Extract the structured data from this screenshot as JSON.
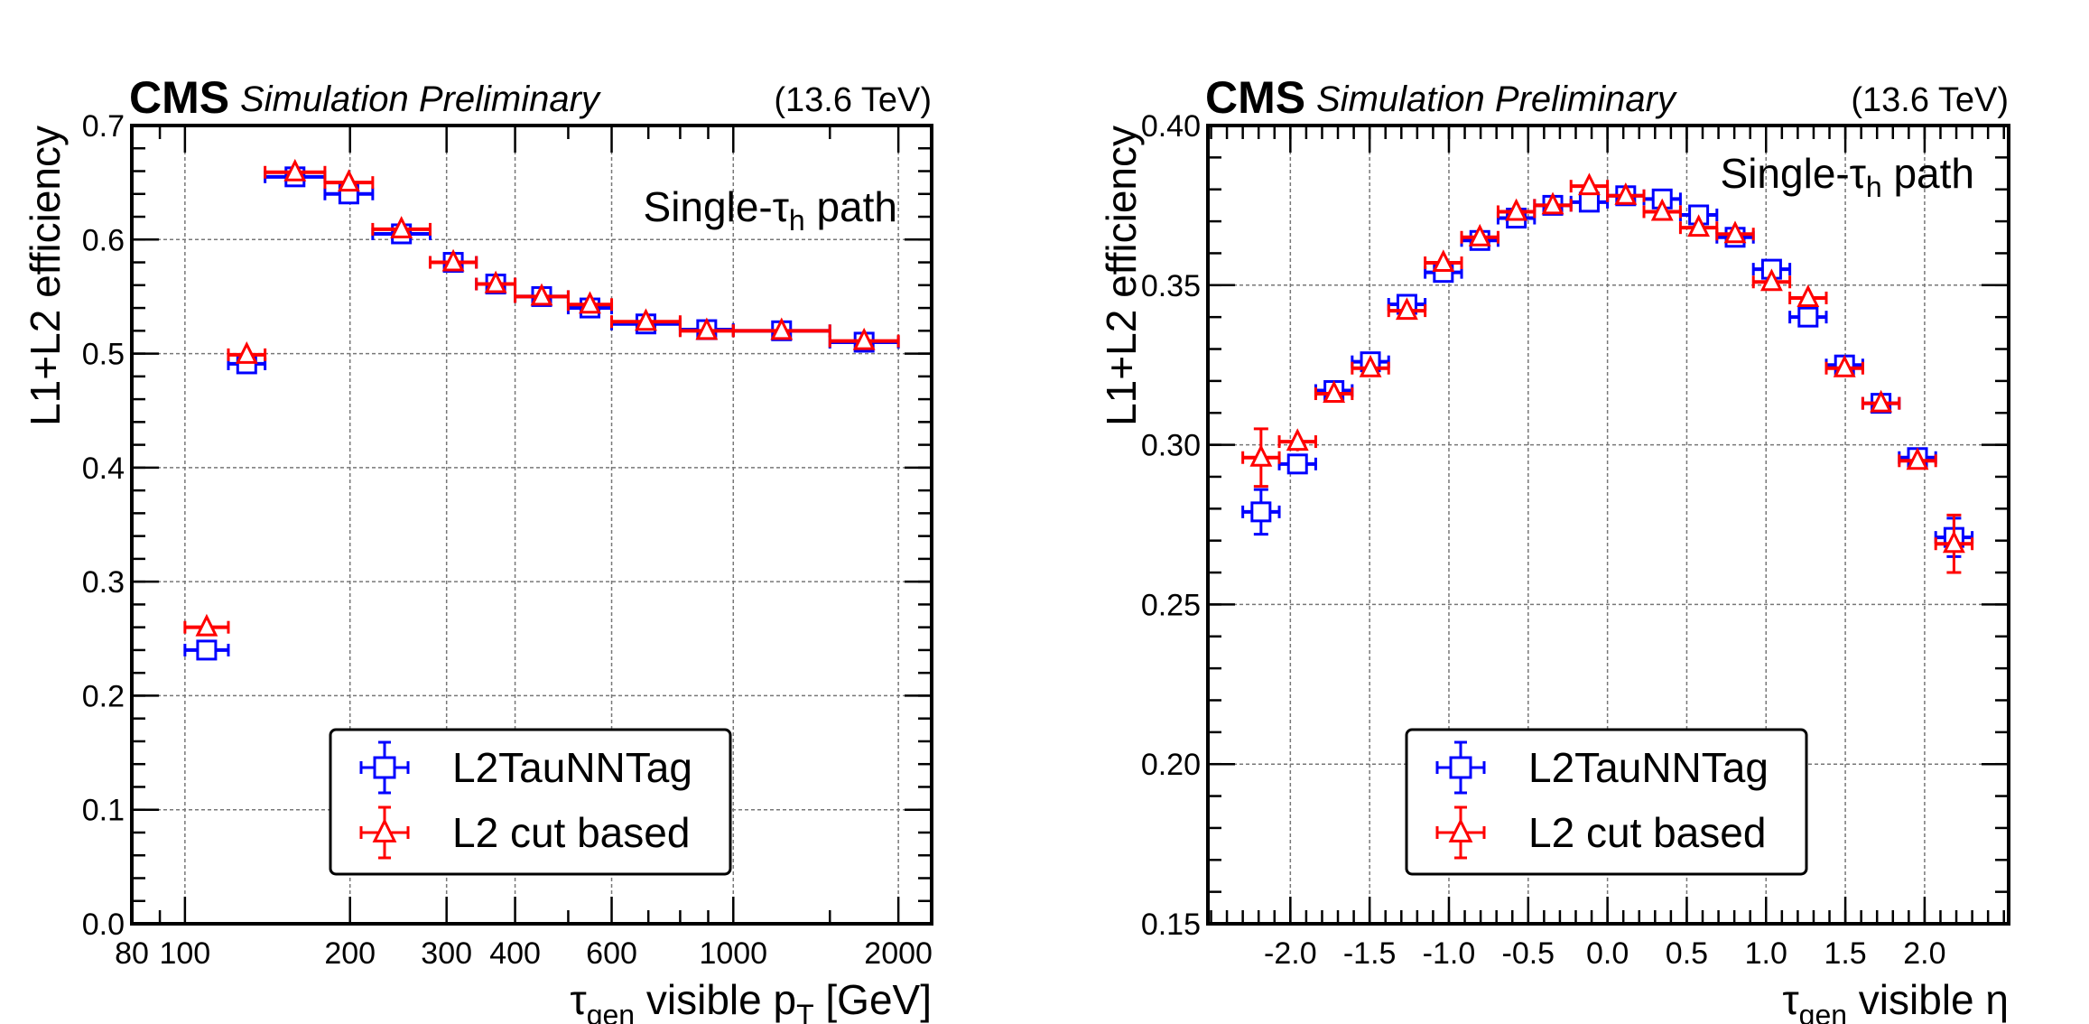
{
  "chart_data": [
    {
      "type": "scatter",
      "name": "efficiency-vs-pt",
      "header": {
        "experiment": "CMS",
        "status": "Simulation Preliminary",
        "energy": "(13.6 TeV)"
      },
      "annotation": {
        "main": "Single-τ",
        "sub": "h",
        "rest": " path"
      },
      "xlabel": {
        "main": "τ",
        "sub": "gen",
        "rest": " visible p",
        "sub2": "T",
        "rest2": " [GeV]"
      },
      "ylabel": "L1+L2 efficiency",
      "xscale": "log",
      "xlim": [
        80,
        2300
      ],
      "ylim": [
        0.0,
        0.7
      ],
      "xticks": [
        80,
        100,
        200,
        300,
        400,
        600,
        1000,
        2000
      ],
      "xtick_labels": [
        "80",
        "100",
        "200",
        "300",
        "400",
        "600",
        "1000",
        "2000"
      ],
      "yticks": [
        0.0,
        0.1,
        0.2,
        0.3,
        0.4,
        0.5,
        0.6,
        0.7
      ],
      "ytick_labels": [
        "0.0",
        "0.1",
        "0.2",
        "0.3",
        "0.4",
        "0.5",
        "0.6",
        "0.7"
      ],
      "grid": true,
      "legend_position": "bottom-center",
      "bins": [
        [
          100,
          120
        ],
        [
          120,
          140
        ],
        [
          140,
          180
        ],
        [
          180,
          220
        ],
        [
          220,
          280
        ],
        [
          280,
          340
        ],
        [
          340,
          400
        ],
        [
          400,
          500
        ],
        [
          500,
          600
        ],
        [
          600,
          800
        ],
        [
          800,
          1000
        ],
        [
          1000,
          1500
        ],
        [
          1500,
          2000
        ]
      ],
      "series": [
        {
          "name": "L2TauNNTag",
          "color": "#0000ff",
          "marker": "open-square",
          "values": [
            0.24,
            0.491,
            0.655,
            0.64,
            0.605,
            0.58,
            0.561,
            0.55,
            0.54,
            0.526,
            0.521,
            0.52,
            0.51
          ],
          "yerr": [
            0.003,
            0.004,
            0.003,
            0.003,
            0.003,
            0.003,
            0.003,
            0.003,
            0.003,
            0.003,
            0.003,
            0.003,
            0.003
          ]
        },
        {
          "name": "L2 cut based",
          "color": "#ff0000",
          "marker": "open-triangle",
          "values": [
            0.26,
            0.499,
            0.659,
            0.65,
            0.609,
            0.58,
            0.561,
            0.55,
            0.543,
            0.528,
            0.52,
            0.52,
            0.511
          ],
          "yerr": [
            0.003,
            0.004,
            0.003,
            0.003,
            0.003,
            0.003,
            0.003,
            0.003,
            0.003,
            0.003,
            0.003,
            0.003,
            0.003
          ]
        }
      ]
    },
    {
      "type": "scatter",
      "name": "efficiency-vs-eta",
      "header": {
        "experiment": "CMS",
        "status": "Simulation Preliminary",
        "energy": "(13.6 TeV)"
      },
      "annotation": {
        "main": "Single-τ",
        "sub": "h",
        "rest": " path"
      },
      "xlabel": {
        "main": "τ",
        "sub": "gen",
        "rest": " visible η",
        "sub2": "",
        "rest2": ""
      },
      "ylabel": "L1+L2 efficiency",
      "xscale": "linear",
      "xlim": [
        -2.52,
        2.53
      ],
      "ylim": [
        0.15,
        0.4
      ],
      "xticks": [
        -2.0,
        -1.5,
        -1.0,
        -0.5,
        0.0,
        0.5,
        1.0,
        1.5,
        2.0
      ],
      "xtick_labels": [
        "-2.0",
        "-1.5",
        "-1.0",
        "-0.5",
        "0.0",
        "0.5",
        "1.0",
        "1.5",
        "2.0"
      ],
      "yticks": [
        0.15,
        0.2,
        0.25,
        0.3,
        0.35,
        0.4
      ],
      "ytick_labels": [
        "0.15",
        "0.20",
        "0.25",
        "0.30",
        "0.35",
        "0.40"
      ],
      "grid": true,
      "legend_position": "bottom-center",
      "bins": [
        [
          -2.3,
          -2.07
        ],
        [
          -2.07,
          -1.84
        ],
        [
          -1.84,
          -1.61
        ],
        [
          -1.61,
          -1.38
        ],
        [
          -1.38,
          -1.15
        ],
        [
          -1.15,
          -0.92
        ],
        [
          -0.92,
          -0.69
        ],
        [
          -0.69,
          -0.46
        ],
        [
          -0.46,
          -0.23
        ],
        [
          -0.23,
          0.0
        ],
        [
          0.0,
          0.23
        ],
        [
          0.23,
          0.46
        ],
        [
          0.46,
          0.69
        ],
        [
          0.69,
          0.92
        ],
        [
          0.92,
          1.15
        ],
        [
          1.15,
          1.38
        ],
        [
          1.38,
          1.61
        ],
        [
          1.61,
          1.84
        ],
        [
          1.84,
          2.07
        ],
        [
          2.07,
          2.3
        ]
      ],
      "series": [
        {
          "name": "L2TauNNTag",
          "color": "#0000ff",
          "marker": "open-square",
          "values": [
            0.279,
            0.294,
            0.317,
            0.326,
            0.344,
            0.354,
            0.364,
            0.371,
            0.375,
            0.376,
            0.378,
            0.377,
            0.372,
            0.365,
            0.355,
            0.34,
            0.325,
            0.313,
            0.296,
            0.271
          ],
          "yerr": [
            0.007,
            0.003,
            0.002,
            0.002,
            0.002,
            0.002,
            0.002,
            0.002,
            0.002,
            0.002,
            0.002,
            0.002,
            0.002,
            0.002,
            0.002,
            0.002,
            0.002,
            0.002,
            0.002,
            0.006
          ]
        },
        {
          "name": "L2 cut based",
          "color": "#ff0000",
          "marker": "open-triangle",
          "values": [
            0.296,
            0.301,
            0.316,
            0.324,
            0.342,
            0.357,
            0.365,
            0.373,
            0.375,
            0.381,
            0.378,
            0.373,
            0.368,
            0.366,
            0.351,
            0.346,
            0.324,
            0.313,
            0.295,
            0.269
          ],
          "yerr": [
            0.009,
            0.003,
            0.002,
            0.002,
            0.002,
            0.002,
            0.002,
            0.002,
            0.002,
            0.002,
            0.002,
            0.002,
            0.002,
            0.002,
            0.002,
            0.002,
            0.002,
            0.002,
            0.002,
            0.009
          ]
        }
      ]
    }
  ]
}
